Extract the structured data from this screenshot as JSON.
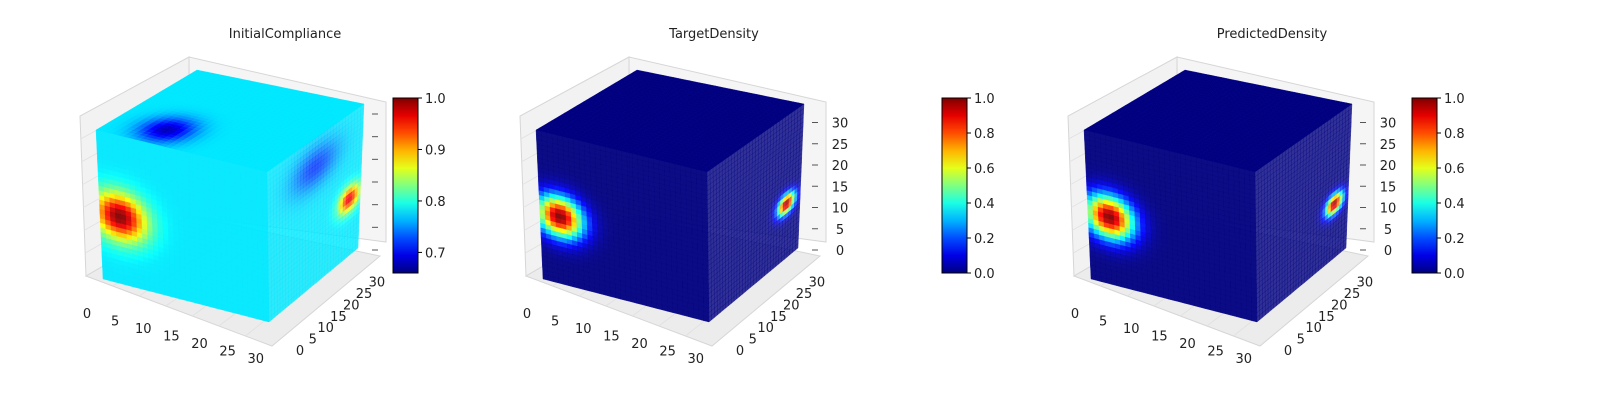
{
  "figure": {
    "panels": [
      {
        "title": "InitialCompliance"
      },
      {
        "title": "TargetDensity"
      },
      {
        "title": "PredictedDensity"
      }
    ]
  },
  "chart_data": [
    {
      "type": "heatmap",
      "plot": "3d voxel cube",
      "title": "InitialCompliance",
      "colormap": "jet",
      "xlabel": "",
      "ylabel": "",
      "zlabel": "",
      "xlim": [
        0,
        32
      ],
      "ylim": [
        0,
        32
      ],
      "xticks": [
        0,
        5,
        10,
        15,
        20,
        25,
        30
      ],
      "yticks": [
        0,
        5,
        10,
        15,
        20,
        25,
        30
      ],
      "zticks": [],
      "colorbar": {
        "range": [
          0.66,
          1.0
        ],
        "ticks": [
          "0.7",
          "0.8",
          "0.9",
          "1.0"
        ]
      },
      "background_value": 0.78,
      "hotspots": [
        {
          "face": "front",
          "u": 0.12,
          "v": 0.55,
          "ru": 0.22,
          "rv": 0.22,
          "value": 1.0
        },
        {
          "face": "side",
          "u": 0.88,
          "v": 0.6,
          "ru": 0.16,
          "rv": 0.12,
          "value": 0.97
        },
        {
          "face": "top",
          "u": 0.3,
          "v": 0.8,
          "ru": 0.2,
          "rv": 0.25,
          "value": 0.68
        },
        {
          "face": "side",
          "u": 0.5,
          "v": 0.2,
          "ru": 0.35,
          "rv": 0.2,
          "value": 0.72
        }
      ]
    },
    {
      "type": "heatmap",
      "plot": "3d voxel cube",
      "title": "TargetDensity",
      "colormap": "jet",
      "xlabel": "",
      "ylabel": "",
      "zlabel": "",
      "xlim": [
        0,
        32
      ],
      "ylim": [
        0,
        32
      ],
      "zlim": [
        0,
        32
      ],
      "xticks": [
        0,
        5,
        10,
        15,
        20,
        25,
        30
      ],
      "yticks": [
        0,
        5,
        10,
        15,
        20,
        25,
        30
      ],
      "zticks": [
        0,
        5,
        10,
        15,
        20,
        25,
        30
      ],
      "colorbar": {
        "range": [
          0.0,
          1.0
        ],
        "ticks": [
          "0.0",
          "0.2",
          "0.4",
          "0.6",
          "0.8",
          "1.0"
        ]
      },
      "background_value": 0.0,
      "hotspots": [
        {
          "face": "front",
          "u": 0.12,
          "v": 0.55,
          "ru": 0.2,
          "rv": 0.2,
          "value": 1.0
        },
        {
          "face": "side",
          "u": 0.85,
          "v": 0.62,
          "ru": 0.14,
          "rv": 0.1,
          "value": 1.0
        }
      ]
    },
    {
      "type": "heatmap",
      "plot": "3d voxel cube",
      "title": "PredictedDensity",
      "colormap": "jet",
      "xlabel": "",
      "ylabel": "",
      "zlabel": "",
      "xlim": [
        0,
        32
      ],
      "ylim": [
        0,
        32
      ],
      "zlim": [
        0,
        32
      ],
      "xticks": [
        0,
        5,
        10,
        15,
        20,
        25,
        30
      ],
      "yticks": [
        0,
        5,
        10,
        15,
        20,
        25,
        30
      ],
      "zticks": [
        0,
        5,
        10,
        15,
        20,
        25,
        30
      ],
      "colorbar": {
        "range": [
          0.0,
          1.0
        ],
        "ticks": [
          "0.0",
          "0.2",
          "0.4",
          "0.6",
          "0.8",
          "1.0"
        ]
      },
      "background_value": 0.0,
      "hotspots": [
        {
          "face": "front",
          "u": 0.13,
          "v": 0.55,
          "ru": 0.21,
          "rv": 0.21,
          "value": 1.0
        },
        {
          "face": "side",
          "u": 0.85,
          "v": 0.62,
          "ru": 0.14,
          "rv": 0.1,
          "value": 1.0
        }
      ]
    }
  ]
}
